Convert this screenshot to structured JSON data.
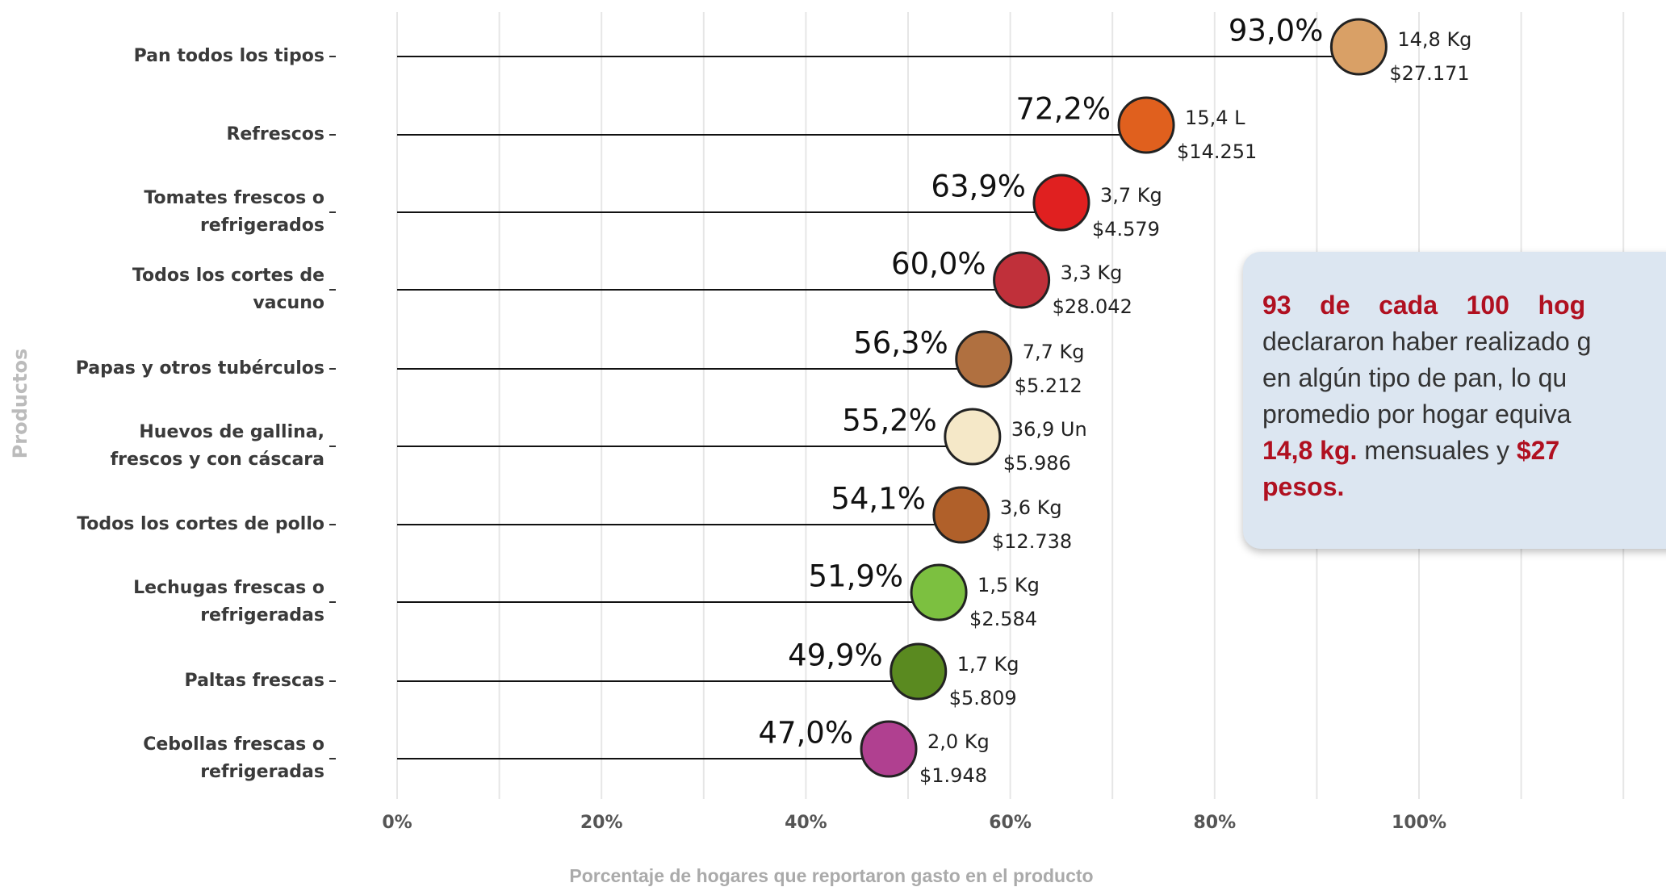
{
  "chart_data": {
    "type": "lollipop",
    "y_label": "Productos",
    "x_label": "Porcentaje de hogares que reportaron gasto en el producto",
    "categories": [
      [
        "Pan todos los tipos"
      ],
      [
        "Refrescos"
      ],
      [
        "Tomates frescos o",
        "refrigerados"
      ],
      [
        "Todos los cortes de",
        "vacuno"
      ],
      [
        "Papas y otros tubérculos"
      ],
      [
        "Huevos de gallina,",
        "frescos y con cáscara"
      ],
      [
        "Todos los cortes de pollo"
      ],
      [
        "Lechugas frescas o",
        "refrigeradas"
      ],
      [
        "Paltas frescas"
      ],
      [
        "Cebollas frescas o",
        "refrigeradas"
      ]
    ],
    "values": [
      93.0,
      72.2,
      63.9,
      60.0,
      56.3,
      55.2,
      54.1,
      51.9,
      49.9,
      47.0
    ],
    "value_labels": [
      "93,0%",
      "72,2%",
      "63,9%",
      "60,0%",
      "56,3%",
      "55,2%",
      "54,1%",
      "51,9%",
      "49,9%",
      "47,0%"
    ],
    "quantity_labels": [
      "14,8 Kg",
      "15,4 L",
      "3,7 Kg",
      "3,3 Kg",
      "7,7 Kg",
      "36,9 Un",
      "3,6 Kg",
      "1,5 Kg",
      "1,7 Kg",
      "2,0 Kg"
    ],
    "spend_labels": [
      "$27.171",
      "$14.251",
      "$4.579",
      "$28.042",
      "$5.212",
      "$5.986",
      "$12.738",
      "$2.584",
      "$5.809",
      "$1.948"
    ],
    "icon_colors": [
      "#d9a066",
      "#e0601e",
      "#e02020",
      "#c0303a",
      "#b07040",
      "#f5e8c8",
      "#b0602a",
      "#7cc040",
      "#5a8a20",
      "#b04090"
    ],
    "color": "#111111",
    "xlim": [
      -5,
      125
    ],
    "xticks": [
      {
        "value": 0,
        "label": "0%"
      },
      {
        "value": 20,
        "label": "20%"
      },
      {
        "value": 40,
        "label": "40%"
      },
      {
        "value": 60,
        "label": "60%"
      },
      {
        "value": 80,
        "label": "80%"
      },
      {
        "value": 100,
        "label": "100%"
      }
    ],
    "grid_lines": [
      0,
      10,
      20,
      30,
      40,
      50,
      60,
      70,
      80,
      90,
      100,
      110,
      120
    ],
    "grid": true
  },
  "callout": {
    "lines": [
      [
        {
          "text": "93    de    cada    100    hog",
          "bold": true
        }
      ],
      [
        {
          "text": "declararon haber realizado g",
          "bold": false
        }
      ],
      [
        {
          "text": "en algún tipo de pan, lo qu",
          "bold": false
        }
      ],
      [
        {
          "text": "promedio por hogar equiva",
          "bold": false
        }
      ],
      [
        {
          "text": "14,8 kg.",
          "bold": true
        },
        {
          "text": " mensuales y ",
          "bold": false
        },
        {
          "text": "$27",
          "bold": true
        }
      ],
      [
        {
          "text": "pesos.",
          "bold": true
        }
      ]
    ]
  }
}
